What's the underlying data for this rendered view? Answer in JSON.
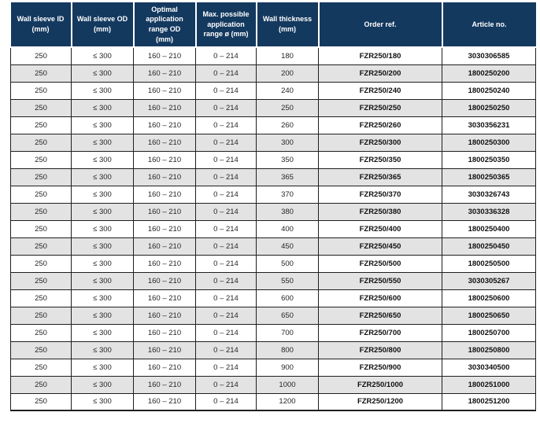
{
  "colors": {
    "header_bg": "#14395F",
    "header_text": "#FFFFFF",
    "row_alt_bg": "#E3E3E3",
    "row_bg": "#FFFFFF",
    "border": "#1F1F1F",
    "text": "#262626",
    "text_bold": "#111111"
  },
  "table": {
    "columns": [
      "Wall sleeve ID\n(mm)",
      "Wall sleeve OD\n(mm)",
      "Optimal\napplication\nrange OD\n(mm)",
      "Max. possible\napplication\nrange ø (mm)",
      "Wall thickness\n(mm)",
      "Order ref.",
      "Article no."
    ],
    "rows": [
      [
        "250",
        "≤ 300",
        "160 – 210",
        "0 – 214",
        "180",
        "FZR250/180",
        "3030306585"
      ],
      [
        "250",
        "≤ 300",
        "160 – 210",
        "0 – 214",
        "200",
        "FZR250/200",
        "1800250200"
      ],
      [
        "250",
        "≤ 300",
        "160 – 210",
        "0 – 214",
        "240",
        "FZR250/240",
        "1800250240"
      ],
      [
        "250",
        "≤ 300",
        "160 – 210",
        "0 – 214",
        "250",
        "FZR250/250",
        "1800250250"
      ],
      [
        "250",
        "≤ 300",
        "160 – 210",
        "0 – 214",
        "260",
        "FZR250/260",
        "3030356231"
      ],
      [
        "250",
        "≤ 300",
        "160 – 210",
        "0 – 214",
        "300",
        "FZR250/300",
        "1800250300"
      ],
      [
        "250",
        "≤ 300",
        "160 – 210",
        "0 – 214",
        "350",
        "FZR250/350",
        "1800250350"
      ],
      [
        "250",
        "≤ 300",
        "160 – 210",
        "0 – 214",
        "365",
        "FZR250/365",
        "1800250365"
      ],
      [
        "250",
        "≤ 300",
        "160 – 210",
        "0 – 214",
        "370",
        "FZR250/370",
        "3030326743"
      ],
      [
        "250",
        "≤ 300",
        "160 – 210",
        "0 – 214",
        "380",
        "FZR250/380",
        "3030336328"
      ],
      [
        "250",
        "≤ 300",
        "160 – 210",
        "0 – 214",
        "400",
        "FZR250/400",
        "1800250400"
      ],
      [
        "250",
        "≤ 300",
        "160 – 210",
        "0 – 214",
        "450",
        "FZR250/450",
        "1800250450"
      ],
      [
        "250",
        "≤ 300",
        "160 – 210",
        "0 – 214",
        "500",
        "FZR250/500",
        "1800250500"
      ],
      [
        "250",
        "≤ 300",
        "160 – 210",
        "0 – 214",
        "550",
        "FZR250/550",
        "3030305267"
      ],
      [
        "250",
        "≤ 300",
        "160 – 210",
        "0 – 214",
        "600",
        "FZR250/600",
        "1800250600"
      ],
      [
        "250",
        "≤ 300",
        "160 – 210",
        "0 – 214",
        "650",
        "FZR250/650",
        "1800250650"
      ],
      [
        "250",
        "≤ 300",
        "160 – 210",
        "0 – 214",
        "700",
        "FZR250/700",
        "1800250700"
      ],
      [
        "250",
        "≤ 300",
        "160 – 210",
        "0 – 214",
        "800",
        "FZR250/800",
        "1800250800"
      ],
      [
        "250",
        "≤ 300",
        "160 – 210",
        "0 – 214",
        "900",
        "FZR250/900",
        "3030340500"
      ],
      [
        "250",
        "≤ 300",
        "160 – 210",
        "0 – 214",
        "1000",
        "FZR250/1000",
        "1800251000"
      ],
      [
        "250",
        "≤ 300",
        "160 – 210",
        "0 – 214",
        "1200",
        "FZR250/1200",
        "1800251200"
      ]
    ]
  }
}
